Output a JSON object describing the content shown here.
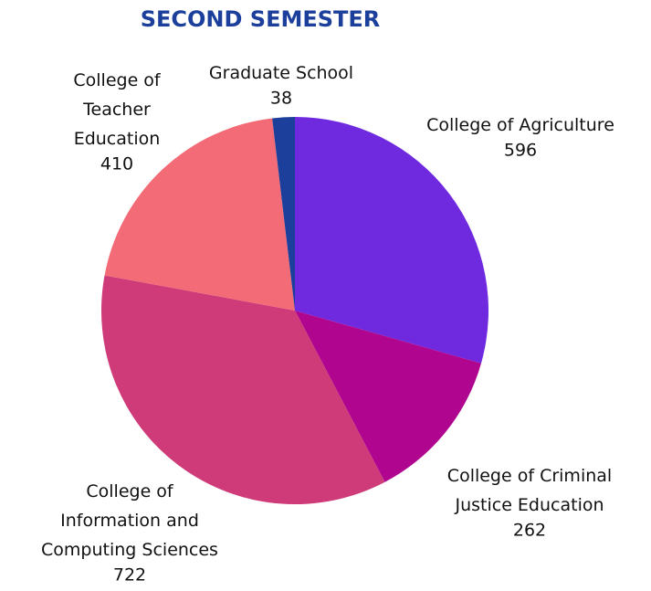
{
  "chart_data": {
    "type": "pie",
    "title": "SECOND SEMESTER",
    "title_color": "#1c3f9c",
    "categories": [
      "College of Agriculture",
      "College of Criminal Justice Education",
      "College of Information and Computing Sciences",
      "College of Teacher Education",
      "Graduate School"
    ],
    "values": [
      596,
      262,
      722,
      410,
      38
    ],
    "colors": [
      "#6f2adf",
      "#b0058f",
      "#cf3a78",
      "#f26b76",
      "#1c3f9c"
    ]
  }
}
